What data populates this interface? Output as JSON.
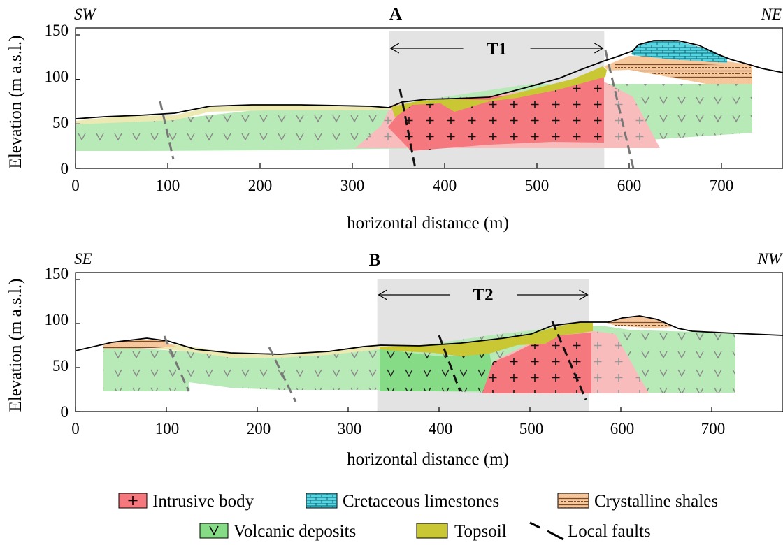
{
  "panels": [
    {
      "letter": "A",
      "left_dir": "SW",
      "right_dir": "NE",
      "zone_label": "T1",
      "zone_range": [
        340,
        573
      ],
      "xlabel": "horizontal distance (m)",
      "ylabel": "Elevation (m a.s.l.)",
      "xticks": [
        "0",
        "100",
        "200",
        "300",
        "400",
        "500",
        "600",
        "700"
      ],
      "yticks": [
        "0",
        "50",
        "100",
        "150"
      ]
    },
    {
      "letter": "B",
      "left_dir": "SE",
      "right_dir": "NW",
      "zone_label": "T2",
      "zone_range": [
        332,
        565
      ],
      "xlabel": "horizontal distance (m)",
      "ylabel": "Elevation (m a.s.l.)",
      "xticks": [
        "0",
        "100",
        "200",
        "300",
        "400",
        "500",
        "600",
        "700"
      ],
      "yticks": [
        "0",
        "50",
        "100",
        "150"
      ]
    }
  ],
  "legend": {
    "intrusive": "Intrusive body",
    "limestone": "Cretaceous limestones",
    "shales": "Crystalline shales",
    "volcanic": "Volcanic deposits",
    "topsoil": "Topsoil",
    "faults": "Local faults"
  },
  "colors": {
    "intrusive": "#f4787e",
    "intrusive_light": "#f9bcbc",
    "limestone": "#55d6e4",
    "shales": "#f6c79a",
    "volcanic": "#b8eab8",
    "volcanic_dark": "#86dc86",
    "topsoil": "#c9c733",
    "topsoil_light": "#ece9b2",
    "zone": "#e3e3e3"
  }
}
